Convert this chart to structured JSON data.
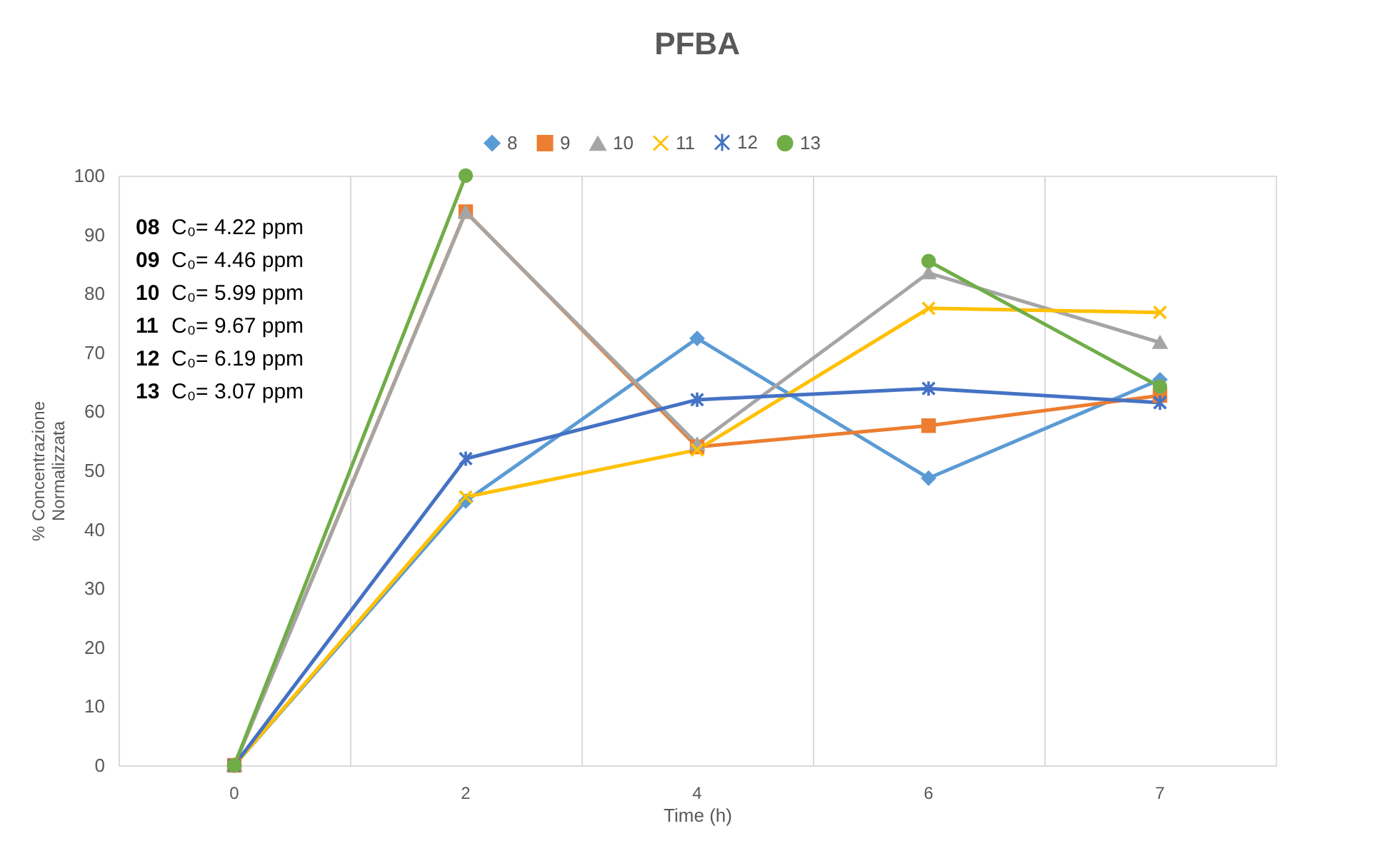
{
  "chart_data": {
    "type": "line",
    "title": "PFBA",
    "xlabel": "Time (h)",
    "ylabel": "% Concentrazione\nNormalizzata",
    "categories": [
      "0",
      "2",
      "4",
      "6",
      "7"
    ],
    "series": [
      {
        "name": "8",
        "color": "#5b9bd5",
        "marker": "diamond",
        "values": [
          0,
          44.8,
          72.4,
          48.7,
          65.4
        ]
      },
      {
        "name": "9",
        "color": "#ed7d31",
        "marker": "square",
        "values": [
          0,
          93.9,
          54,
          57.6,
          62.7
        ]
      },
      {
        "name": "10",
        "color": "#a5a5a5",
        "marker": "triangle",
        "values": [
          0,
          93.8,
          54.5,
          83.5,
          71.7
        ]
      },
      {
        "name": "11",
        "color": "#ffc000",
        "marker": "cross",
        "values": [
          0,
          45.5,
          53.5,
          77.5,
          76.8
        ]
      },
      {
        "name": "12",
        "color": "#4472c4",
        "marker": "cross",
        "values": [
          0,
          52,
          62,
          63.9,
          61.5
        ]
      },
      {
        "name": "13",
        "color": "#70ad47",
        "marker": "circle",
        "values": [
          0,
          100,
          null,
          85.5,
          64.2
        ]
      }
    ],
    "ylim": [
      0,
      100
    ],
    "yticks": [
      0,
      10,
      20,
      30,
      40,
      50,
      60,
      70,
      80,
      90,
      100
    ],
    "grid": "x",
    "legend": "top",
    "line_style": "solid",
    "annotations": [
      "08 C₀= 4.22 ppm",
      "09 C₀= 4.46 ppm",
      "10 C₀= 5.99 ppm",
      "11 C₀= 9.67 ppm",
      "12 C₀= 6.19 ppm",
      "13 C₀= 3.07 ppm"
    ]
  }
}
